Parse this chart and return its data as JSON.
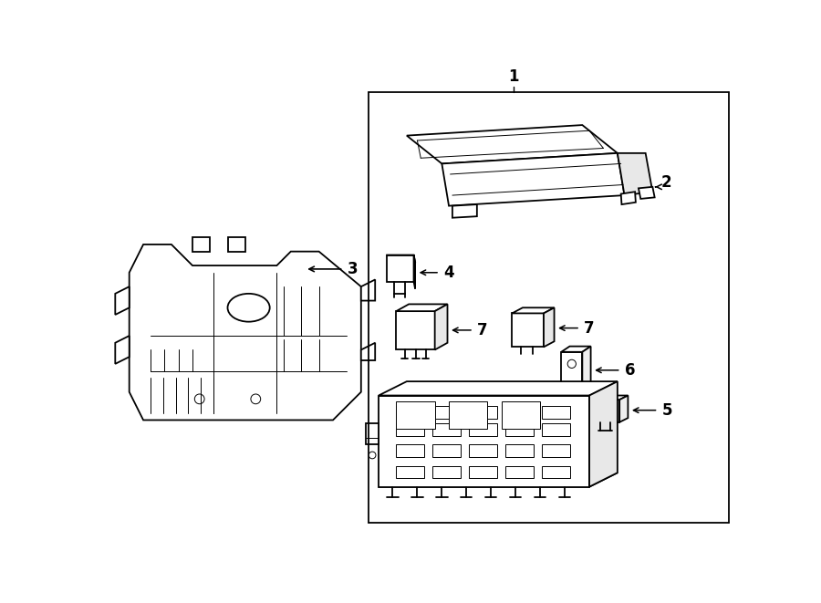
{
  "background_color": "#ffffff",
  "line_color": "#000000",
  "lw": 1.3,
  "tlw": 0.7,
  "fig_width": 9.0,
  "fig_height": 6.61,
  "dpi": 100
}
